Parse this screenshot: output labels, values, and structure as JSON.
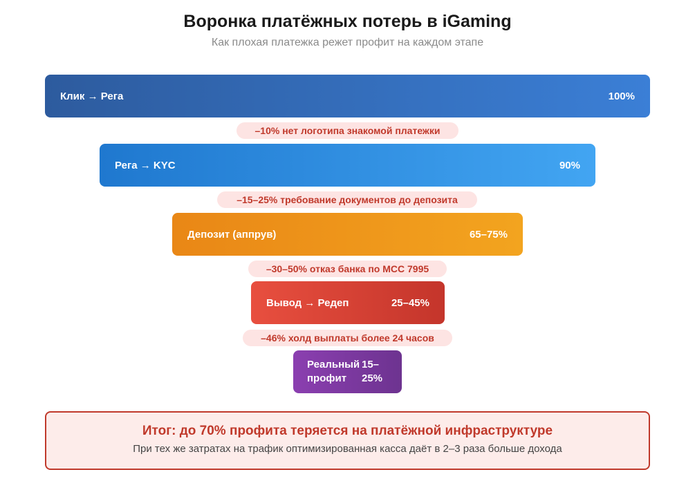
{
  "header": {
    "title": "Воронка платёжных потерь в iGaming",
    "subtitle": "Как плохая платежка режет профит на каждом этапе"
  },
  "stages": [
    {
      "label": "Клик → Рега",
      "value": "100%",
      "color_from": "#2d5b9e",
      "color_to": "#3b7fd6"
    },
    {
      "label": "Рега → KYC",
      "value": "90%",
      "color_from": "#1f78cf",
      "color_to": "#42a5f2"
    },
    {
      "label": "Депозит (аппрув)",
      "value": "65–75%",
      "color_from": "#e98716",
      "color_to": "#f3a41f"
    },
    {
      "label": "Вывод → Редеп",
      "value": "25–45%",
      "color_from": "#e84f3f",
      "color_to": "#c4352b"
    },
    {
      "label": "Реальный профит",
      "value": "15–25%",
      "color_from": "#8b3fb0",
      "color_to": "#6d3390"
    }
  ],
  "losses": [
    "–10% нет логотипа знакомой платежки",
    "–15–25% требование документов до депозита",
    "–30–50% отказ банка по MCC 7995",
    "–46% холд выплаты более 24 часов"
  ],
  "summary": {
    "headline": "Итог: до 70% профита теряется на платёжной инфраструктуре",
    "note": "При тех же затратах на трафик оптимизированная касса даёт в 2–3 раза больше дохода"
  }
}
